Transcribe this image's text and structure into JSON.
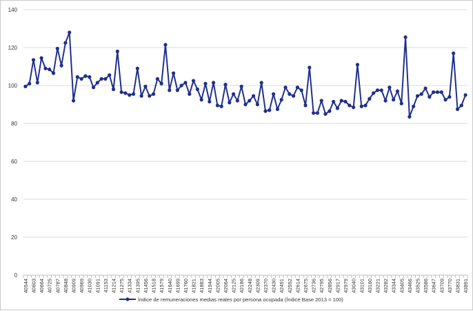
{
  "chart_data": {
    "type": "line",
    "title": "",
    "xlabel": "",
    "ylabel": "",
    "ylim": [
      0,
      140
    ],
    "y_ticks": [
      0,
      20,
      40,
      60,
      80,
      100,
      120,
      140
    ],
    "grid": "horizontal",
    "legend_position": "bottom",
    "x": [
      40544,
      40575,
      40603,
      40634,
      40664,
      40695,
      40725,
      40756,
      40787,
      40817,
      40848,
      40878,
      40909,
      40940,
      40969,
      41000,
      41030,
      41061,
      41091,
      41122,
      41153,
      41183,
      41214,
      41244,
      41275,
      41306,
      41334,
      41365,
      41395,
      41426,
      41456,
      41487,
      41518,
      41548,
      41579,
      41609,
      41640,
      41671,
      41699,
      41730,
      41760,
      41791,
      41821,
      41852,
      41883,
      41913,
      41944,
      41974,
      42005,
      42036,
      42064,
      42095,
      42125,
      42156,
      42186,
      42217,
      42248,
      42278,
      42309,
      42339,
      42370,
      42401,
      42430,
      42461,
      42491,
      42522,
      42552,
      42583,
      42614,
      42644,
      42675,
      42705,
      42736,
      42767,
      42795,
      42826,
      42856,
      42887,
      42917,
      42948,
      42979,
      43009,
      43040,
      43070,
      43101,
      43132,
      43160,
      43191,
      43221,
      43252,
      43282,
      43313,
      43344,
      43374,
      43405,
      43435,
      43466,
      43497,
      43525,
      43556,
      43586,
      43617,
      43647,
      43678,
      43709,
      43739,
      43770,
      43800,
      43831,
      43862,
      43891
    ],
    "x_tick_labels": [
      "40544",
      "40603",
      "40664",
      "40725",
      "40787",
      "40848",
      "40909",
      "40969",
      "41030",
      "41091",
      "41153",
      "41214",
      "41275",
      "41334",
      "41395",
      "41456",
      "41518",
      "41579",
      "41640",
      "41699",
      "41760",
      "41821",
      "41883",
      "41944",
      "42005",
      "42064",
      "42125",
      "42186",
      "42248",
      "42309",
      "42370",
      "42430",
      "42491",
      "42552",
      "42614",
      "42675",
      "42736",
      "42795",
      "42856",
      "42917",
      "42979",
      "43040",
      "43101",
      "43160",
      "43221",
      "43282",
      "43344",
      "43405",
      "43466",
      "43525",
      "43586",
      "43647",
      "43709",
      "43770",
      "43831",
      "43891"
    ],
    "series": [
      {
        "name": "Índice de remuneraciones medias reales por persona ocupada (Índice Base 2013 = 100)",
        "color": "#1f2f8c",
        "values": [
          99.5,
          101,
          113.5,
          101.5,
          114.5,
          109,
          108.5,
          106.5,
          119.5,
          110.5,
          122.5,
          128,
          92,
          104.5,
          103.5,
          105,
          104.5,
          99,
          101.5,
          103.5,
          103.5,
          105.5,
          98,
          118,
          96.5,
          96,
          95,
          95.5,
          109,
          94.5,
          99.5,
          94.5,
          95.5,
          103.5,
          101,
          121.5,
          97.5,
          106.5,
          97.5,
          100,
          101.5,
          95.5,
          102.5,
          98,
          92.5,
          101,
          91.5,
          101.5,
          89.5,
          89,
          100.5,
          91,
          95.5,
          92,
          99.5,
          90,
          92,
          94.5,
          90,
          101.5,
          86.5,
          87,
          95.5,
          87.5,
          92.5,
          99,
          95.5,
          94.5,
          99,
          97.5,
          89.5,
          109.5,
          85.5,
          85.5,
          92,
          85,
          86.5,
          91.5,
          88,
          92,
          91.5,
          89.5,
          88.5,
          111,
          89,
          89.5,
          93,
          96,
          97.5,
          97.5,
          92,
          99,
          92.5,
          97,
          90.5,
          125.5,
          83.5,
          89,
          94.5,
          95.5,
          98.5,
          94,
          96.5,
          96.5,
          96.5,
          92.5,
          94,
          117,
          87.5,
          89.5,
          95
        ]
      }
    ]
  }
}
